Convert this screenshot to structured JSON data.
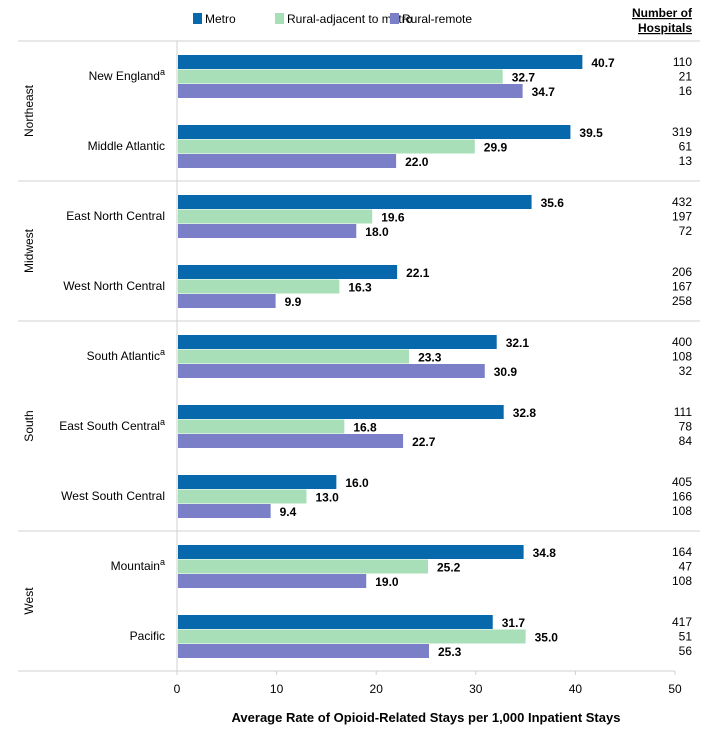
{
  "chart_data": {
    "type": "bar",
    "orientation": "horizontal",
    "xlabel": "Average Rate of Opioid-Related Stays per 1,000 Inpatient Stays",
    "xlim": [
      0,
      50
    ],
    "xticks": [
      "0",
      "10",
      "20",
      "30",
      "40",
      "50"
    ],
    "grid": false,
    "legend_position": "top",
    "hospitals_header": [
      "Number of",
      "Hospitals"
    ],
    "footnote_marker": "a",
    "regions": [
      {
        "name": "Northeast",
        "divisions": [
          "New England",
          "Middle Atlantic"
        ]
      },
      {
        "name": "Midwest",
        "divisions": [
          "East North Central",
          "West North Central"
        ]
      },
      {
        "name": "South",
        "divisions": [
          "South Atlantic",
          "East South Central",
          "West South Central"
        ]
      },
      {
        "name": "West",
        "divisions": [
          "Mountain",
          "Pacific"
        ]
      }
    ],
    "categories": [
      "New England",
      "Middle Atlantic",
      "East North Central",
      "West North Central",
      "South Atlantic",
      "East South Central",
      "West South Central",
      "Mountain",
      "Pacific"
    ],
    "footnoted": [
      true,
      false,
      false,
      false,
      true,
      true,
      false,
      true,
      false
    ],
    "series": [
      {
        "name": "Metro",
        "color": "#0868ac",
        "values": [
          40.7,
          39.5,
          35.6,
          22.1,
          32.1,
          32.8,
          16.0,
          34.8,
          31.7
        ],
        "hospitals": [
          110,
          319,
          432,
          206,
          400,
          111,
          405,
          164,
          417
        ]
      },
      {
        "name": "Rural-adjacent to metro",
        "color": "#a8dfb8",
        "values": [
          32.7,
          29.9,
          19.6,
          16.3,
          23.3,
          16.8,
          13.0,
          25.2,
          35.0
        ],
        "hospitals": [
          21,
          61,
          197,
          167,
          108,
          78,
          166,
          47,
          51
        ]
      },
      {
        "name": "Rural-remote",
        "color": "#7b7fc8",
        "values": [
          34.7,
          22.0,
          18.0,
          9.9,
          30.9,
          22.7,
          9.4,
          19.0,
          25.3
        ],
        "hospitals": [
          16,
          13,
          72,
          258,
          32,
          84,
          108,
          108,
          56
        ]
      }
    ]
  }
}
